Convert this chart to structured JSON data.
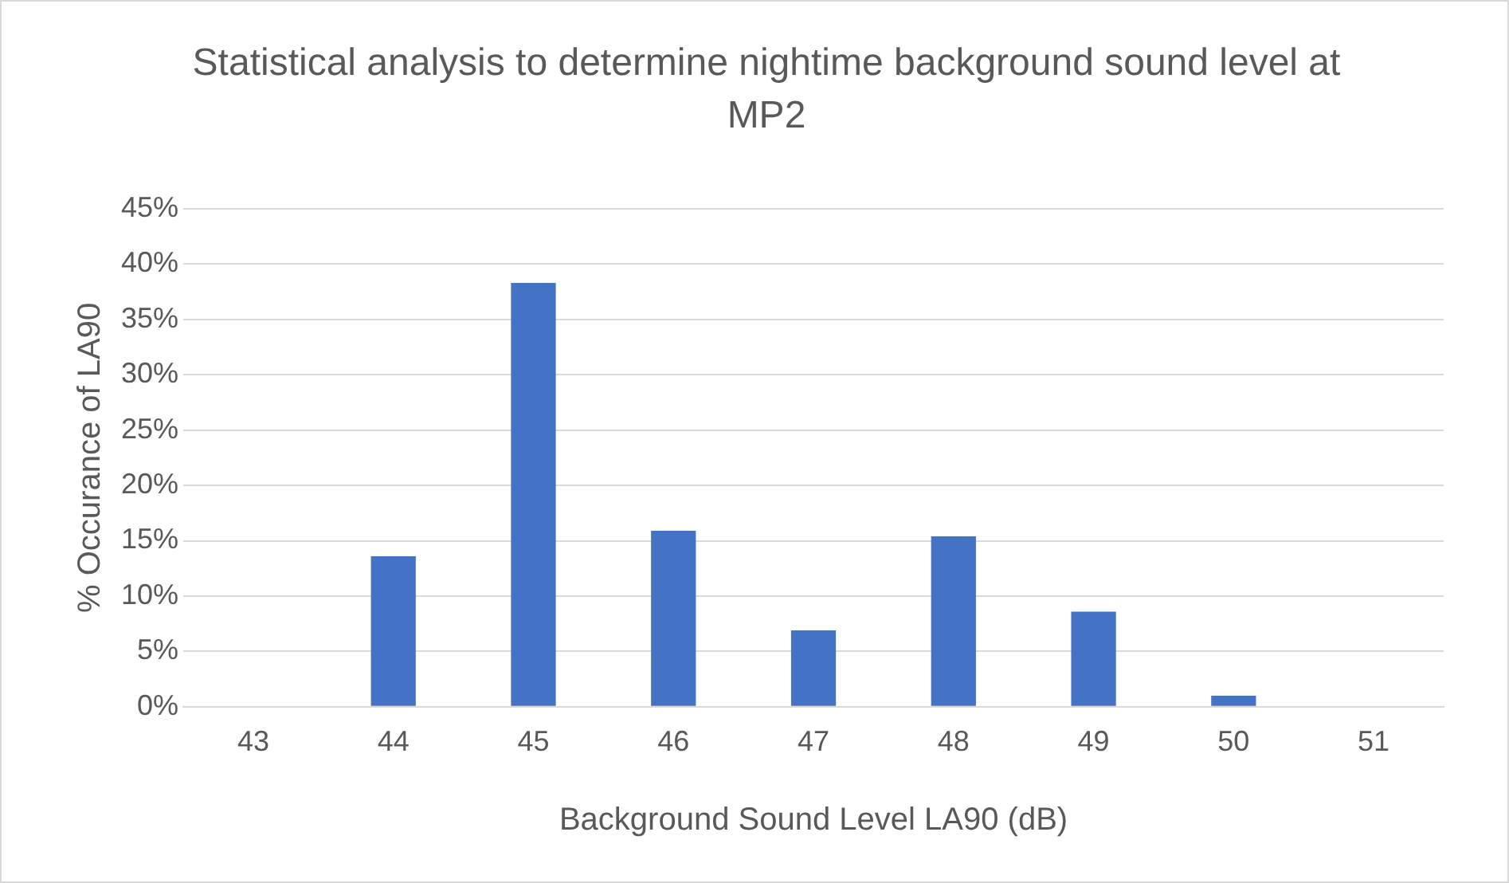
{
  "chart_data": {
    "type": "bar",
    "title": "Statistical analysis to determine nightime background sound level at MP2",
    "xlabel": "Background Sound Level LA90 (dB)",
    "ylabel": "% Occurance of LA90",
    "categories": [
      "43",
      "44",
      "45",
      "46",
      "47",
      "48",
      "49",
      "50",
      "51"
    ],
    "values": [
      0,
      13.6,
      38.3,
      15.9,
      6.9,
      15.4,
      8.6,
      1.0,
      0
    ],
    "color": "#4472c4",
    "ylim": [
      0,
      45
    ],
    "yticks": [
      {
        "value": 0,
        "label": "0%"
      },
      {
        "value": 5,
        "label": "5%"
      },
      {
        "value": 10,
        "label": "10%"
      },
      {
        "value": 15,
        "label": "15%"
      },
      {
        "value": 20,
        "label": "20%"
      },
      {
        "value": 25,
        "label": "25%"
      },
      {
        "value": 30,
        "label": "30%"
      },
      {
        "value": 35,
        "label": "35%"
      },
      {
        "value": 40,
        "label": "40%"
      },
      {
        "value": 45,
        "label": "45%"
      }
    ],
    "grid": "y",
    "legend": false
  }
}
